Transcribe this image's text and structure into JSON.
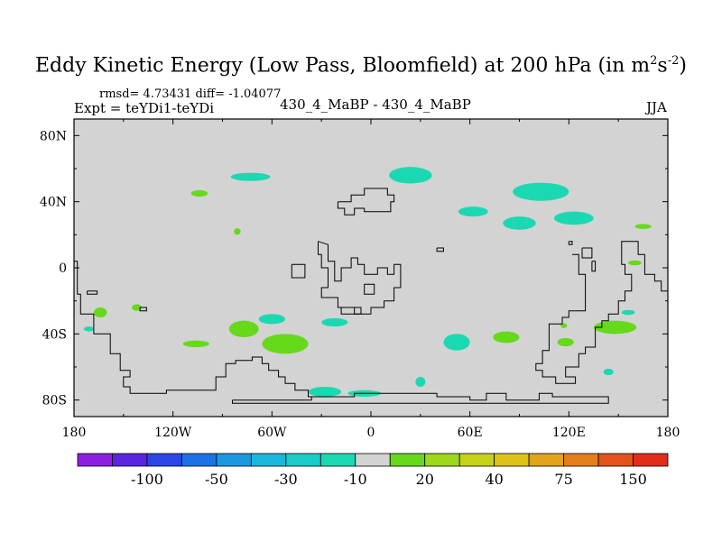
{
  "header": {
    "title_main": "Eddy Kinetic Energy (Low Pass, Bloomfield) at 200 hPa (in m",
    "title_exp1": "2",
    "title_mid": "s",
    "title_exp2": "-2",
    "title_end": ")",
    "stats": "rmsd= 4.73431 diff= -1.04077",
    "experiment": "Expt = teYDi1-teYDi",
    "center": "430_4_MaBP - 430_4_MaBP",
    "season": "JJA"
  },
  "map": {
    "background_color": "#d3d3d3",
    "x_ticks": [
      {
        "lon": -180,
        "label": "180"
      },
      {
        "lon": -120,
        "label": "120W"
      },
      {
        "lon": -60,
        "label": "60W"
      },
      {
        "lon": 0,
        "label": "0"
      },
      {
        "lon": 60,
        "label": "60E"
      },
      {
        "lon": 120,
        "label": "120E"
      },
      {
        "lon": 180,
        "label": "180"
      }
    ],
    "y_ticks": [
      {
        "lat": 80,
        "label": "80N"
      },
      {
        "lat": 40,
        "label": "40N"
      },
      {
        "lat": 0,
        "label": "0"
      },
      {
        "lat": -40,
        "label": "40S"
      },
      {
        "lat": -80,
        "label": "80S"
      }
    ]
  },
  "colorbar": {
    "colors": [
      "#8d1fe0",
      "#5a24e0",
      "#2c46e6",
      "#1a72e6",
      "#1a98e2",
      "#1ab6dc",
      "#1acbc8",
      "#1ad9b2",
      "#d3d3d3",
      "#66d91a",
      "#9dd81a",
      "#c5d21a",
      "#ddc21a",
      "#e2a41a",
      "#e47e1a",
      "#e4541a",
      "#e22d1a"
    ],
    "labels": [
      {
        "after_box": 2,
        "text": "-100"
      },
      {
        "after_box": 4,
        "text": "-50"
      },
      {
        "after_box": 6,
        "text": "-30"
      },
      {
        "after_box": 8,
        "text": "-10"
      },
      {
        "after_box": 10,
        "text": "20"
      },
      {
        "after_box": 12,
        "text": "40"
      },
      {
        "after_box": 14,
        "text": "75"
      },
      {
        "after_box": 16,
        "text": "150"
      }
    ]
  },
  "blobs": [
    {
      "name": "anomaly-negative",
      "color": "#1ad9b2",
      "lon": -73,
      "lat": 55,
      "rlon": 12,
      "rlat": 2.5
    },
    {
      "name": "anomaly-positive",
      "color": "#66d91a",
      "lon": -104,
      "lat": 45,
      "rlon": 5,
      "rlat": 2
    },
    {
      "name": "anomaly-negative",
      "color": "#1ad9b2",
      "lon": 24,
      "lat": 56,
      "rlon": 13,
      "rlat": 5
    },
    {
      "name": "anomaly-negative",
      "color": "#1ad9b2",
      "lon": 103,
      "lat": 46,
      "rlon": 17,
      "rlat": 5.5
    },
    {
      "name": "anomaly-negative",
      "color": "#1ad9b2",
      "lon": 62,
      "lat": 34,
      "rlon": 9,
      "rlat": 3
    },
    {
      "name": "anomaly-negative",
      "color": "#1ad9b2",
      "lon": 90,
      "lat": 27,
      "rlon": 10,
      "rlat": 4
    },
    {
      "name": "anomaly-negative",
      "color": "#1ad9b2",
      "lon": 123,
      "lat": 30,
      "rlon": 12,
      "rlat": 4
    },
    {
      "name": "anomaly-positive",
      "color": "#66d91a",
      "lon": 165,
      "lat": 25,
      "rlon": 5,
      "rlat": 1.5
    },
    {
      "name": "anomaly-positive",
      "color": "#66d91a",
      "lon": -81,
      "lat": 22,
      "rlon": 2,
      "rlat": 2
    },
    {
      "name": "anomaly-positive",
      "color": "#66d91a",
      "lon": 160,
      "lat": 3,
      "rlon": 4,
      "rlat": 1.5
    },
    {
      "name": "anomaly-negative",
      "color": "#1ad9b2",
      "lon": -60,
      "lat": -31,
      "rlon": 8,
      "rlat": 3
    },
    {
      "name": "anomaly-negative",
      "color": "#1ad9b2",
      "lon": -22,
      "lat": -33,
      "rlon": 8,
      "rlat": 2.5
    },
    {
      "name": "anomaly-positive",
      "color": "#66d91a",
      "lon": -77,
      "lat": -37,
      "rlon": 9,
      "rlat": 5
    },
    {
      "name": "anomaly-positive",
      "color": "#66d91a",
      "lon": -52,
      "lat": -46,
      "rlon": 14,
      "rlat": 6
    },
    {
      "name": "anomaly-positive",
      "color": "#66d91a",
      "lon": -164,
      "lat": -27,
      "rlon": 4,
      "rlat": 3
    },
    {
      "name": "anomaly-positive",
      "color": "#66d91a",
      "lon": -142,
      "lat": -24,
      "rlon": 3,
      "rlat": 2
    },
    {
      "name": "anomaly-positive",
      "color": "#66d91a",
      "lon": -106,
      "lat": -46,
      "rlon": 8,
      "rlat": 2
    },
    {
      "name": "anomaly-negative",
      "color": "#1ad9b2",
      "lon": -171,
      "lat": -37,
      "rlon": 3,
      "rlat": 1.5
    },
    {
      "name": "anomaly-negative",
      "color": "#1ad9b2",
      "lon": 52,
      "lat": -45,
      "rlon": 8,
      "rlat": 5
    },
    {
      "name": "anomaly-positive",
      "color": "#66d91a",
      "lon": 82,
      "lat": -42,
      "rlon": 8,
      "rlat": 3.5
    },
    {
      "name": "anomaly-positive",
      "color": "#66d91a",
      "lon": 118,
      "lat": -45,
      "rlon": 5,
      "rlat": 2.5
    },
    {
      "name": "anomaly-positive",
      "color": "#66d91a",
      "lon": 148,
      "lat": -36,
      "rlon": 13,
      "rlat": 4
    },
    {
      "name": "anomaly-negative",
      "color": "#1ad9b2",
      "lon": 156,
      "lat": -27,
      "rlon": 4,
      "rlat": 1.5
    },
    {
      "name": "anomaly-negative",
      "color": "#1ad9b2",
      "lon": 144,
      "lat": -63,
      "rlon": 3,
      "rlat": 2
    },
    {
      "name": "anomaly-positive",
      "color": "#66d91a",
      "lon": 117,
      "lat": -35,
      "rlon": 2,
      "rlat": 1.5
    },
    {
      "name": "anomaly-negative",
      "color": "#1ad9b2",
      "lon": -28,
      "lat": -75,
      "rlon": 10,
      "rlat": 3
    },
    {
      "name": "anomaly-negative",
      "color": "#1ad9b2",
      "lon": -4,
      "lat": -76,
      "rlon": 10,
      "rlat": 2
    },
    {
      "name": "anomaly-negative",
      "color": "#1ad9b2",
      "lon": 30,
      "lat": -69,
      "rlon": 3,
      "rlat": 3
    }
  ],
  "coastlines": [
    {
      "name": "coastline-europe",
      "points": [
        [
          -20,
          40
        ],
        [
          -12,
          40
        ],
        [
          -12,
          44
        ],
        [
          -4,
          44
        ],
        [
          -4,
          48
        ],
        [
          10,
          48
        ],
        [
          10,
          44
        ],
        [
          14,
          44
        ],
        [
          14,
          40
        ],
        [
          12,
          40
        ],
        [
          12,
          34
        ],
        [
          -4,
          34
        ],
        [
          -4,
          36
        ],
        [
          -10,
          36
        ],
        [
          -10,
          32
        ],
        [
          -16,
          32
        ],
        [
          -16,
          36
        ],
        [
          -20,
          36
        ],
        [
          -20,
          40
        ]
      ]
    },
    {
      "name": "coastline-africa",
      "points": [
        [
          -32,
          16
        ],
        [
          -32,
          8
        ],
        [
          -30,
          8
        ],
        [
          -30,
          0
        ],
        [
          -26,
          0
        ],
        [
          -26,
          -12
        ],
        [
          -30,
          -12
        ],
        [
          -30,
          -18
        ],
        [
          -20,
          -18
        ],
        [
          -20,
          -24
        ],
        [
          -10,
          -24
        ],
        [
          -10,
          -28
        ],
        [
          0,
          -28
        ],
        [
          0,
          -24
        ],
        [
          8,
          -24
        ],
        [
          8,
          -20
        ],
        [
          14,
          -20
        ],
        [
          14,
          -12
        ],
        [
          18,
          -12
        ],
        [
          18,
          2
        ],
        [
          14,
          2
        ],
        [
          14,
          -4
        ],
        [
          10,
          -4
        ],
        [
          10,
          0
        ],
        [
          4,
          0
        ],
        [
          4,
          -4
        ],
        [
          -4,
          -4
        ],
        [
          -4,
          2
        ],
        [
          -8,
          2
        ],
        [
          -8,
          6
        ],
        [
          -12,
          6
        ],
        [
          -12,
          0
        ],
        [
          -18,
          0
        ],
        [
          -18,
          -8
        ],
        [
          -22,
          -8
        ],
        [
          -22,
          4
        ],
        [
          -26,
          4
        ],
        [
          -26,
          14
        ],
        [
          -32,
          16
        ]
      ]
    },
    {
      "name": "coastline-africa-lake",
      "points": [
        [
          -4,
          -10
        ],
        [
          2,
          -10
        ],
        [
          2,
          -16
        ],
        [
          -4,
          -16
        ],
        [
          -4,
          -10
        ]
      ]
    },
    {
      "name": "coastline-island-atlantic",
      "points": [
        [
          -48,
          2
        ],
        [
          -40,
          2
        ],
        [
          -40,
          -6
        ],
        [
          -48,
          -6
        ],
        [
          -48,
          2
        ]
      ]
    },
    {
      "name": "coastline-island-small",
      "points": [
        [
          40,
          12
        ],
        [
          44,
          12
        ],
        [
          44,
          10
        ],
        [
          40,
          10
        ],
        [
          40,
          12
        ]
      ]
    },
    {
      "name": "coastline-asia-islands",
      "points": [
        [
          128,
          12
        ],
        [
          134,
          12
        ],
        [
          134,
          6
        ],
        [
          128,
          6
        ],
        [
          128,
          12
        ]
      ]
    },
    {
      "name": "coastline-maritime",
      "points": [
        [
          134,
          4
        ],
        [
          136,
          4
        ],
        [
          136,
          -2
        ],
        [
          134,
          -2
        ],
        [
          134,
          4
        ]
      ]
    },
    {
      "name": "coastline-australia",
      "points": [
        [
          122,
          8
        ],
        [
          126,
          8
        ],
        [
          126,
          -4
        ],
        [
          130,
          -4
        ],
        [
          130,
          -26
        ],
        [
          120,
          -26
        ],
        [
          120,
          -30
        ],
        [
          116,
          -30
        ],
        [
          116,
          -34
        ],
        [
          108,
          -34
        ],
        [
          108,
          -50
        ],
        [
          104,
          -50
        ],
        [
          104,
          -58
        ],
        [
          100,
          -58
        ],
        [
          100,
          -62
        ],
        [
          104,
          -62
        ],
        [
          104,
          -66
        ],
        [
          112,
          -66
        ],
        [
          112,
          -70
        ],
        [
          124,
          -70
        ],
        [
          124,
          -66
        ],
        [
          118,
          -66
        ],
        [
          118,
          -60
        ],
        [
          126,
          -60
        ],
        [
          126,
          -52
        ],
        [
          130,
          -52
        ],
        [
          130,
          -48
        ],
        [
          136,
          -48
        ],
        [
          136,
          -36
        ],
        [
          140,
          -36
        ],
        [
          140,
          -32
        ],
        [
          144,
          -32
        ],
        [
          144,
          -28
        ],
        [
          150,
          -28
        ],
        [
          150,
          -20
        ],
        [
          154,
          -20
        ],
        [
          154,
          -14
        ],
        [
          158,
          -14
        ],
        [
          158,
          -4
        ],
        [
          154,
          -4
        ],
        [
          154,
          2
        ],
        [
          152,
          2
        ],
        [
          152,
          16
        ],
        [
          162,
          16
        ],
        [
          162,
          8
        ],
        [
          166,
          8
        ],
        [
          166,
          -4
        ],
        [
          172,
          -4
        ],
        [
          172,
          -8
        ],
        [
          176,
          -8
        ],
        [
          176,
          -14
        ],
        [
          180,
          -14
        ],
        [
          180,
          -10
        ]
      ]
    },
    {
      "name": "coastline-pacific-west",
      "points": [
        [
          -180,
          4
        ],
        [
          -178,
          4
        ],
        [
          -178,
          -16
        ],
        [
          -176,
          -16
        ],
        [
          -176,
          -28
        ],
        [
          -168,
          -28
        ],
        [
          -168,
          -40
        ],
        [
          -158,
          -40
        ],
        [
          -158,
          -52
        ],
        [
          -152,
          -52
        ],
        [
          -152,
          -62
        ],
        [
          -146,
          -62
        ],
        [
          -146,
          -66
        ],
        [
          -150,
          -66
        ],
        [
          -150,
          -72
        ],
        [
          -146,
          -72
        ],
        [
          -146,
          -76
        ],
        [
          -124,
          -76
        ],
        [
          -124,
          -74
        ],
        [
          -94,
          -74
        ],
        [
          -94,
          -66
        ],
        [
          -88,
          -66
        ],
        [
          -88,
          -58
        ],
        [
          -82,
          -58
        ],
        [
          -82,
          -56
        ],
        [
          -72,
          -56
        ],
        [
          -72,
          -54
        ],
        [
          -66,
          -54
        ],
        [
          -66,
          -58
        ],
        [
          -62,
          -58
        ],
        [
          -62,
          -62
        ],
        [
          -56,
          -62
        ],
        [
          -56,
          -66
        ],
        [
          -52,
          -66
        ],
        [
          -52,
          -70
        ],
        [
          -46,
          -70
        ],
        [
          -46,
          -74
        ],
        [
          -38,
          -74
        ],
        [
          -38,
          -78
        ],
        [
          -20,
          -78
        ]
      ]
    },
    {
      "name": "coastline-antarctica",
      "points": [
        [
          -84,
          -80
        ],
        [
          -36,
          -80
        ],
        [
          -36,
          -78
        ],
        [
          -10,
          -78
        ],
        [
          -10,
          -76
        ],
        [
          40,
          -76
        ],
        [
          40,
          -78
        ],
        [
          60,
          -78
        ],
        [
          60,
          -80
        ],
        [
          70,
          -80
        ],
        [
          70,
          -76
        ],
        [
          82,
          -76
        ],
        [
          82,
          -80
        ],
        [
          102,
          -80
        ],
        [
          102,
          -76
        ],
        [
          110,
          -76
        ],
        [
          110,
          -78
        ],
        [
          144,
          -78
        ],
        [
          144,
          -82
        ],
        [
          -84,
          -82
        ],
        [
          -84,
          -80
        ]
      ]
    },
    {
      "name": "coastline-pacific-island",
      "points": [
        [
          -172,
          -14
        ],
        [
          -166,
          -14
        ],
        [
          -166,
          -16
        ],
        [
          -172,
          -16
        ],
        [
          -172,
          -14
        ]
      ]
    },
    {
      "name": "coastline-small-isle-1",
      "points": [
        [
          -140,
          -24
        ],
        [
          -136,
          -24
        ],
        [
          -136,
          -26
        ],
        [
          -140,
          -26
        ],
        [
          -140,
          -24
        ]
      ]
    },
    {
      "name": "coastline-peninsula",
      "points": [
        [
          120,
          16
        ],
        [
          122,
          16
        ],
        [
          122,
          14
        ],
        [
          120,
          14
        ],
        [
          120,
          16
        ]
      ]
    },
    {
      "name": "coastline-gulf",
      "points": [
        [
          -18,
          -24
        ],
        [
          -6,
          -24
        ],
        [
          -6,
          -28
        ],
        [
          -18,
          -28
        ],
        [
          -18,
          -24
        ]
      ]
    }
  ]
}
